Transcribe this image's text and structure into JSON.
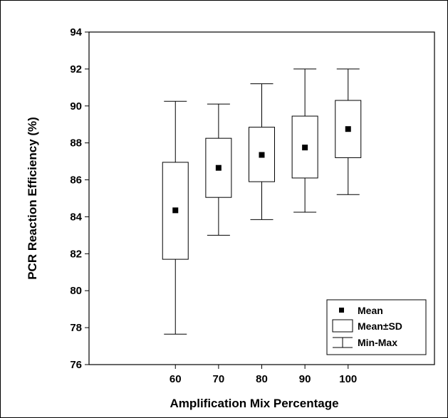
{
  "chart_data": {
    "type": "boxplot",
    "title": "",
    "xlabel": "Amplification Mix Percentage",
    "ylabel": "PCR Reaction Efficiency (%)",
    "categories": [
      "60",
      "70",
      "80",
      "90",
      "100"
    ],
    "xlim": [
      40,
      120
    ],
    "ylim": [
      76,
      94
    ],
    "yticks": [
      76,
      78,
      80,
      82,
      84,
      86,
      88,
      90,
      92,
      94
    ],
    "yticklabels": [
      "76",
      "78",
      "80",
      "82",
      "84",
      "86",
      "88",
      "90",
      "92",
      "94"
    ],
    "series": [
      {
        "category": "60",
        "mean": 84.35,
        "sd_low": 81.7,
        "sd_high": 86.95,
        "min": 77.65,
        "max": 90.25
      },
      {
        "category": "70",
        "mean": 86.65,
        "sd_low": 85.05,
        "sd_high": 88.25,
        "min": 83.0,
        "max": 90.1
      },
      {
        "category": "80",
        "mean": 87.35,
        "sd_low": 85.9,
        "sd_high": 88.85,
        "min": 83.85,
        "max": 91.2
      },
      {
        "category": "90",
        "mean": 87.75,
        "sd_low": 86.1,
        "sd_high": 89.45,
        "min": 84.25,
        "max": 92.0
      },
      {
        "category": "100",
        "mean": 88.75,
        "sd_low": 87.2,
        "sd_high": 90.3,
        "min": 85.2,
        "max": 92.0
      }
    ],
    "legend": {
      "position": "bottom-right",
      "entries": [
        {
          "label": "Mean",
          "symbol": "square-marker"
        },
        {
          "label": "Mean±SD",
          "symbol": "box"
        },
        {
          "label": "Min-Max",
          "symbol": "whisker"
        }
      ]
    },
    "grid": false,
    "colors": {
      "stroke": "#000000",
      "fill": "#ffffff",
      "marker": "#000000"
    }
  }
}
